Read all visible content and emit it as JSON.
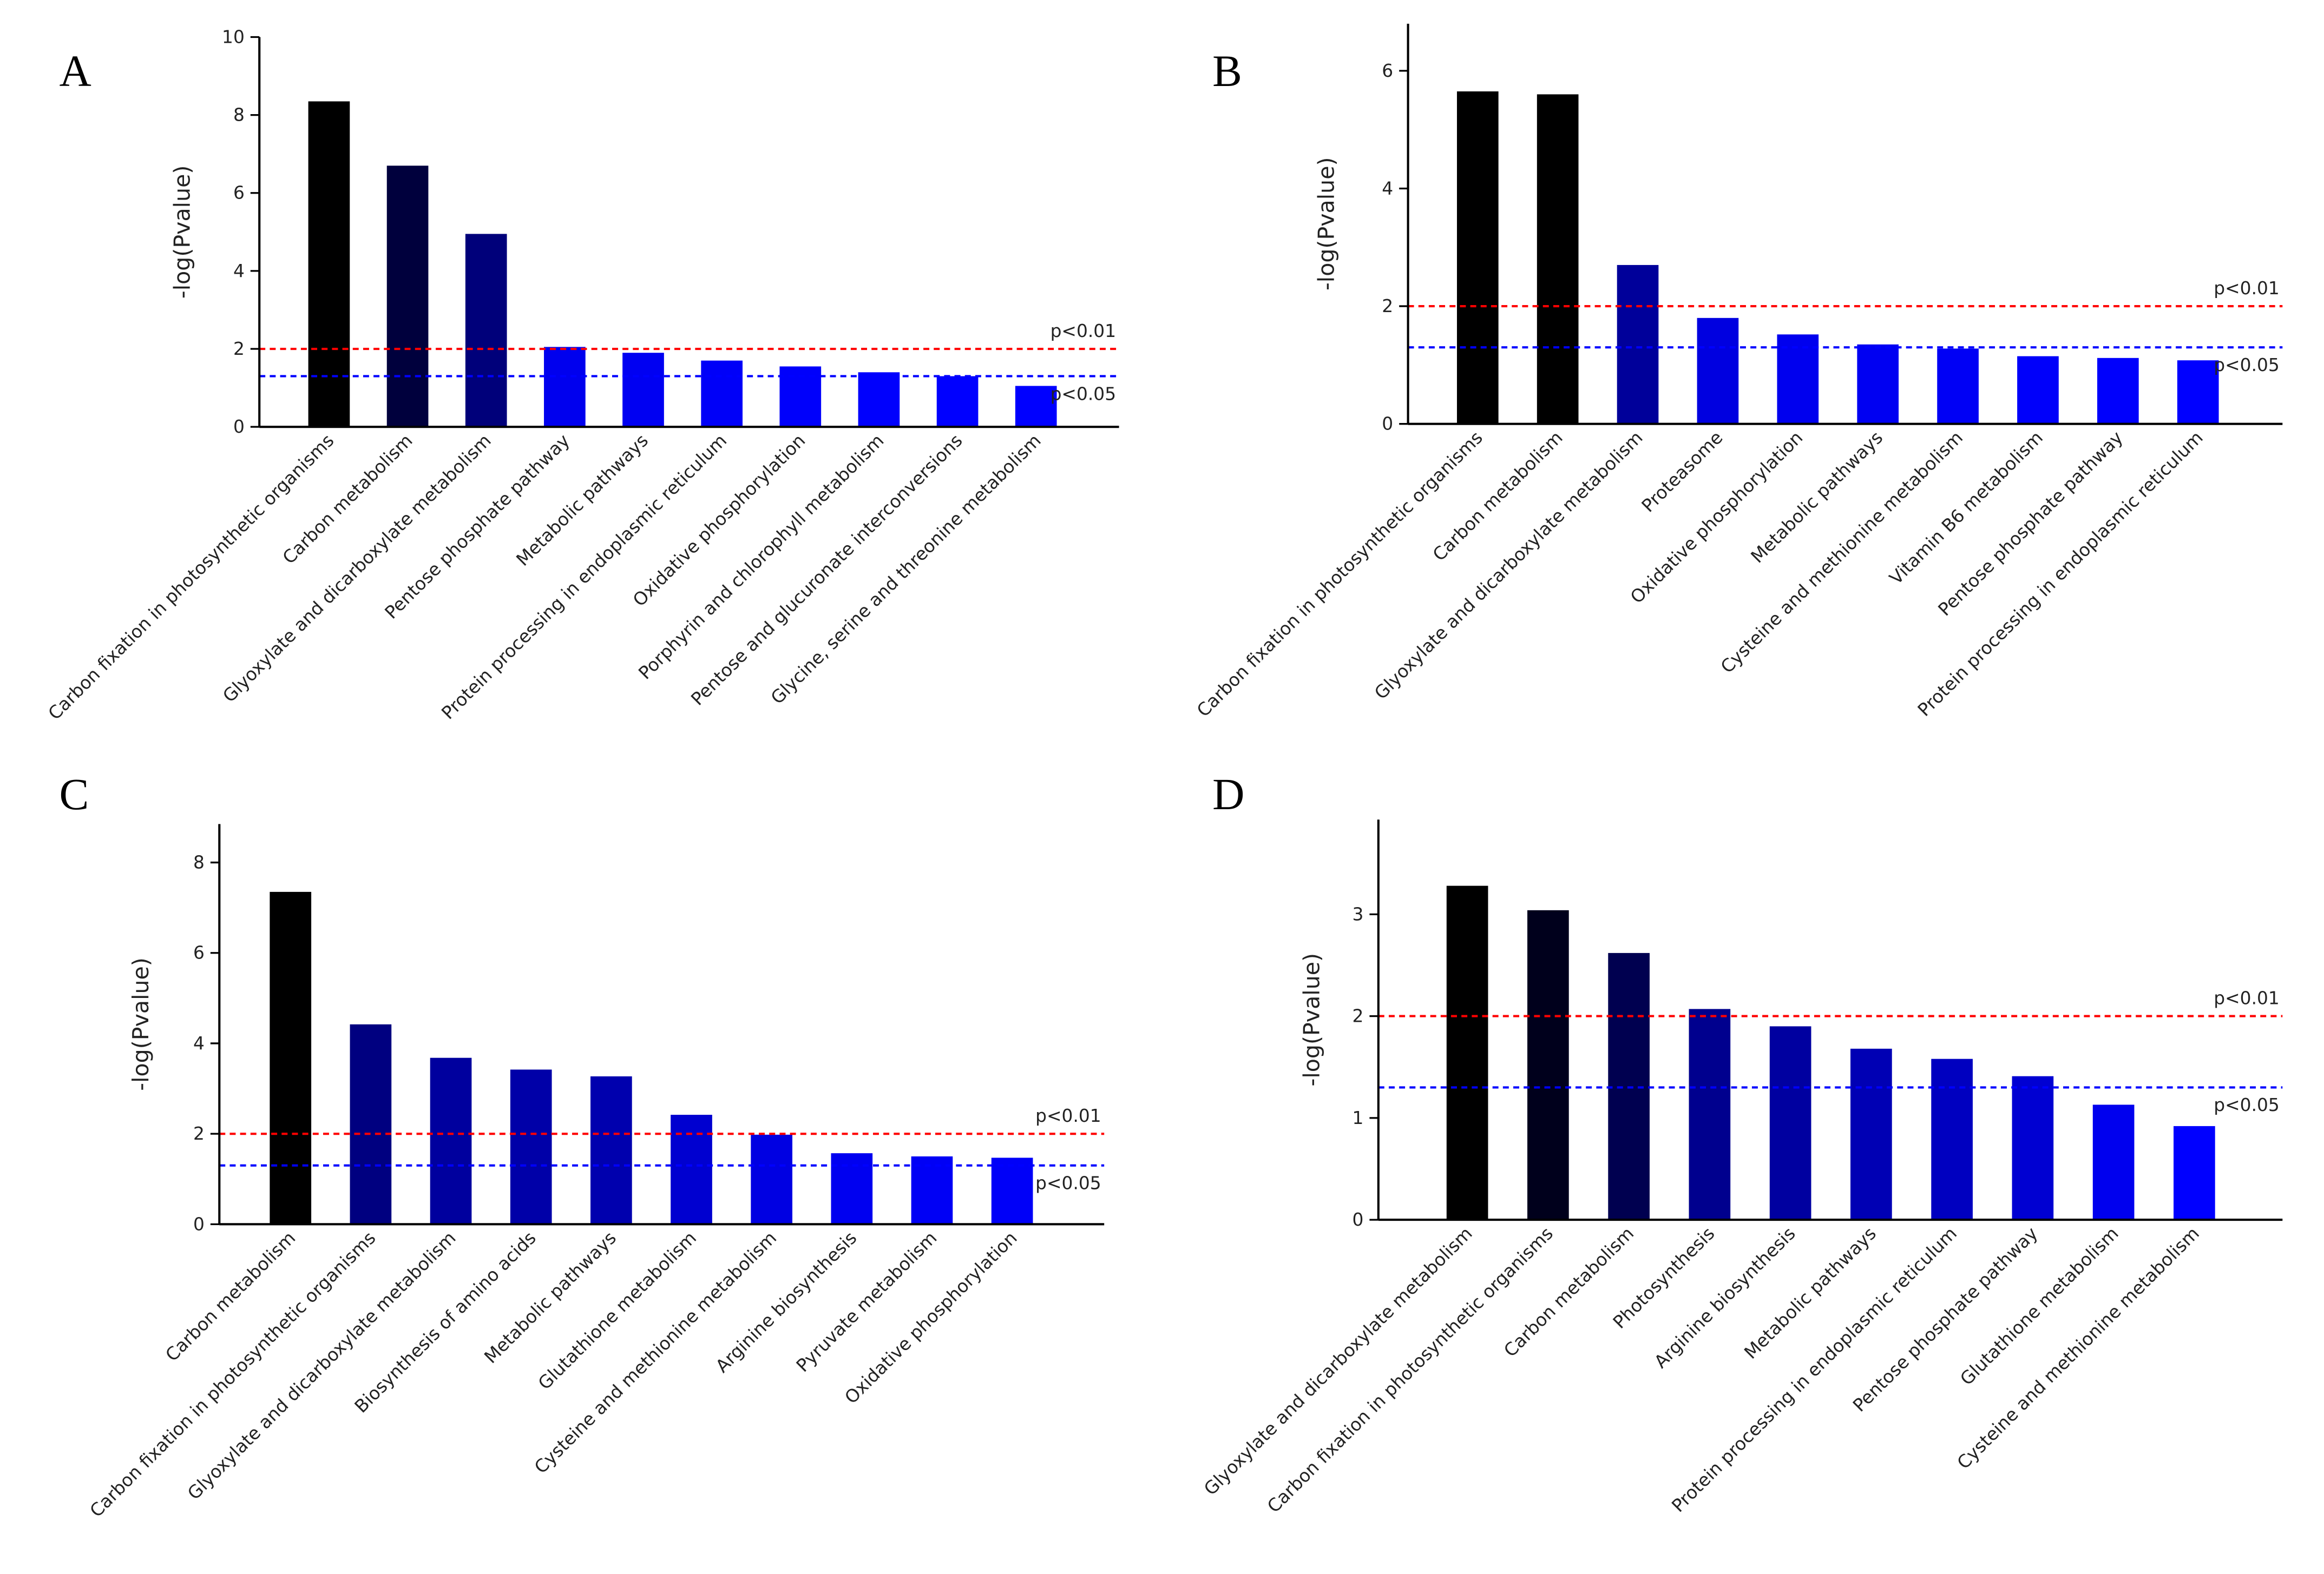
{
  "chart_data": [
    {
      "type": "bar",
      "panel_label": "A",
      "y_label": "-log(Pvalue)",
      "categories": [
        "Carbon fixation in photosynthetic organisms",
        "Carbon metabolism",
        "Glyoxylate and dicarboxylate metabolism",
        "Pentose phosphate pathway",
        "Metabolic pathways",
        "Protein processing in endoplasmic reticulum",
        "Oxidative phosphorylation",
        "Porphyrin and chlorophyll metabolism",
        "Pentose and glucuronate interconversions",
        "Glycine, serine and threonine metabolism"
      ],
      "values": [
        8.35,
        6.7,
        4.95,
        2.05,
        1.9,
        1.7,
        1.55,
        1.4,
        1.3,
        1.05
      ],
      "colors": [
        "#000000",
        "#00003d",
        "#00007a",
        "#0000ee",
        "#0000f2",
        "#0000f8",
        "#0000fb",
        "#0000fd",
        "#0000ff",
        "#0000ff"
      ],
      "ylim": [
        0,
        10
      ],
      "yticks": [
        0,
        2,
        4,
        6,
        8,
        10
      ],
      "reference_lines": [
        {
          "value": 2,
          "label": "p<0.01",
          "color": "#ff0000"
        },
        {
          "value": 1.3,
          "label": "p<0.05",
          "color": "#0000ff"
        }
      ]
    },
    {
      "type": "bar",
      "panel_label": "B",
      "y_label": "-log(Pvalue)",
      "categories": [
        "Carbon fixation in photosynthetic organisms",
        "Carbon metabolism",
        "Glyoxylate and dicarboxylate metabolism",
        "Proteasome",
        "Oxidative phosphorylation",
        "Metabolic pathways",
        "Cysteine and methionine metabolism",
        "Vitamin B6 metabolism",
        "Pentose phosphate pathway",
        "Protein processing in endoplasmic reticulum"
      ],
      "values": [
        5.65,
        5.6,
        2.7,
        1.8,
        1.52,
        1.35,
        1.28,
        1.15,
        1.12,
        1.08
      ],
      "colors": [
        "#000000",
        "#000000",
        "#00009a",
        "#0000e0",
        "#0000ee",
        "#0000f2",
        "#0000f5",
        "#0000fa",
        "#0000fc",
        "#0000ff"
      ],
      "ylim": [
        0,
        6.8
      ],
      "yticks": [
        0,
        2,
        4,
        6
      ],
      "reference_lines": [
        {
          "value": 2,
          "label": "p<0.01",
          "color": "#ff0000"
        },
        {
          "value": 1.3,
          "label": "p<0.05",
          "color": "#0000ff"
        }
      ]
    },
    {
      "type": "bar",
      "panel_label": "C",
      "y_label": "-log(Pvalue)",
      "categories": [
        "Carbon metabolism",
        "Carbon fixation in photosynthetic organisms",
        "Glyoxylate and dicarboxylate metabolism",
        "Biosynthesis of amino acids",
        "Metabolic pathways",
        "Glutathione metabolism",
        "Cysteine and methionine metabolism",
        "Arginine biosynthesis",
        "Pyruvate metabolism",
        "Oxidative phosphorylation"
      ],
      "values": [
        7.35,
        4.42,
        3.68,
        3.42,
        3.27,
        2.42,
        1.98,
        1.57,
        1.5,
        1.47
      ],
      "colors": [
        "#000000",
        "#000080",
        "#00009e",
        "#0000a8",
        "#0000ae",
        "#0000d0",
        "#0000e2",
        "#0000f0",
        "#0000f5",
        "#0000f8"
      ],
      "ylim": [
        0,
        8.85
      ],
      "yticks": [
        0,
        2,
        4,
        6,
        8
      ],
      "reference_lines": [
        {
          "value": 2,
          "label": "p<0.01",
          "color": "#ff0000"
        },
        {
          "value": 1.3,
          "label": "p<0.05",
          "color": "#0000ff"
        }
      ]
    },
    {
      "type": "bar",
      "panel_label": "D",
      "y_label": "-log(Pvalue)",
      "categories": [
        "Glyoxylate and dicarboxylate metabolism",
        "Carbon fixation in photosynthetic organisms",
        "Carbon metabolism",
        "Photosynthesis",
        "Arginine biosynthesis",
        "Metabolic pathways",
        "Protein processing in endoplasmic reticulum",
        "Pentose phosphate pathway",
        "Glutathione metabolism",
        "Cysteine and methionine metabolism"
      ],
      "values": [
        3.28,
        3.04,
        2.62,
        2.07,
        1.9,
        1.68,
        1.58,
        1.41,
        1.13,
        0.92
      ],
      "colors": [
        "#000000",
        "#00001c",
        "#000050",
        "#00008e",
        "#0000a0",
        "#0000b4",
        "#0000c0",
        "#0000d2",
        "#0000ee",
        "#0000ff"
      ],
      "ylim": [
        0,
        3.93
      ],
      "yticks": [
        0,
        1,
        2,
        3
      ],
      "reference_lines": [
        {
          "value": 2,
          "label": "p<0.01",
          "color": "#ff0000"
        },
        {
          "value": 1.3,
          "label": "p<0.05",
          "color": "#0000ff"
        }
      ]
    }
  ]
}
